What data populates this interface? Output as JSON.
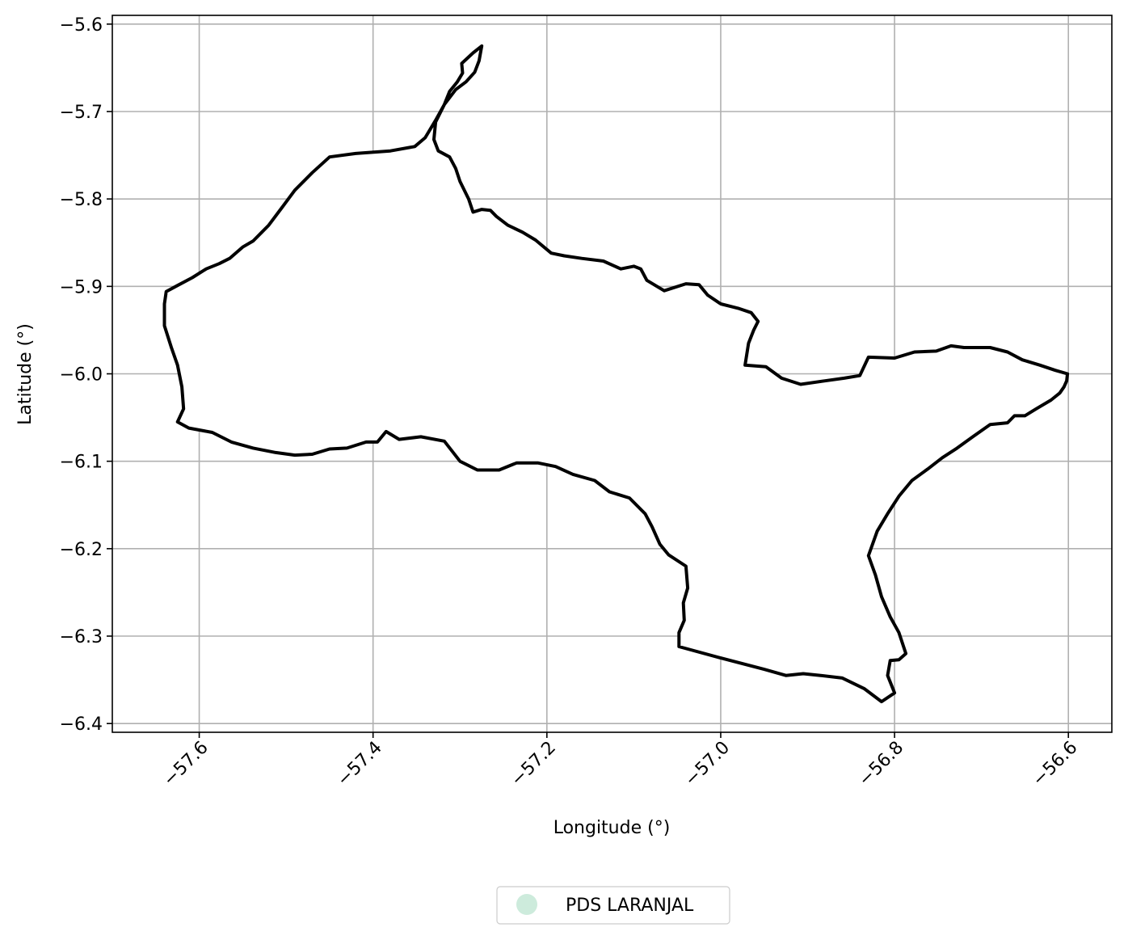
{
  "chart_data": {
    "type": "map",
    "xlabel": "Longitude (°)",
    "ylabel": "Latitude (°)",
    "xlim": [
      -57.7,
      -56.55
    ],
    "ylim": [
      -6.41,
      -5.59
    ],
    "xticks": [
      -57.6,
      -57.4,
      -57.2,
      -57.0,
      -56.8,
      -56.6
    ],
    "xtick_labels": [
      "−57.6",
      "−57.4",
      "−57.2",
      "−57.0",
      "−56.8",
      "−56.6"
    ],
    "yticks": [
      -5.6,
      -5.7,
      -5.8,
      -5.9,
      -6.0,
      -6.1,
      -6.2,
      -6.3,
      -6.4
    ],
    "ytick_labels": [
      "−5.6",
      "−5.7",
      "−5.8",
      "−5.9",
      "−6.0",
      "−6.1",
      "−6.2",
      "−6.3",
      "−6.4"
    ],
    "grid": true,
    "legend": {
      "placement": "bottom-center, below plot",
      "entries": [
        {
          "label": "PDS LARANJAL",
          "color": "#cdebdc",
          "marker": "circle"
        }
      ]
    },
    "series": [
      {
        "name": "PDS LARANJAL",
        "fill_color": "#ffffff",
        "stroke_color": "#000000",
        "boundary": [
          [
            -57.275,
            -5.625
          ],
          [
            -57.285,
            -5.633
          ],
          [
            -57.298,
            -5.645
          ],
          [
            -57.297,
            -5.656
          ],
          [
            -57.303,
            -5.666
          ],
          [
            -57.312,
            -5.677
          ],
          [
            -57.318,
            -5.692
          ],
          [
            -57.328,
            -5.71
          ],
          [
            -57.34,
            -5.73
          ],
          [
            -57.352,
            -5.74
          ],
          [
            -57.38,
            -5.745
          ],
          [
            -57.42,
            -5.748
          ],
          [
            -57.45,
            -5.752
          ],
          [
            -57.47,
            -5.77
          ],
          [
            -57.49,
            -5.79
          ],
          [
            -57.505,
            -5.81
          ],
          [
            -57.52,
            -5.83
          ],
          [
            -57.528,
            -5.838
          ],
          [
            -57.538,
            -5.848
          ],
          [
            -57.55,
            -5.855
          ],
          [
            -57.565,
            -5.868
          ],
          [
            -57.577,
            -5.874
          ],
          [
            -57.592,
            -5.88
          ],
          [
            -57.608,
            -5.89
          ],
          [
            -57.625,
            -5.899
          ],
          [
            -57.638,
            -5.906
          ],
          [
            -57.64,
            -5.92
          ],
          [
            -57.64,
            -5.945
          ],
          [
            -57.632,
            -5.97
          ],
          [
            -57.625,
            -5.99
          ],
          [
            -57.62,
            -6.015
          ],
          [
            -57.618,
            -6.04
          ],
          [
            -57.625,
            -6.055
          ],
          [
            -57.612,
            -6.062
          ],
          [
            -57.585,
            -6.067
          ],
          [
            -57.563,
            -6.078
          ],
          [
            -57.538,
            -6.085
          ],
          [
            -57.512,
            -6.09
          ],
          [
            -57.49,
            -6.093
          ],
          [
            -57.47,
            -6.092
          ],
          [
            -57.45,
            -6.086
          ],
          [
            -57.43,
            -6.085
          ],
          [
            -57.408,
            -6.078
          ],
          [
            -57.395,
            -6.078
          ],
          [
            -57.385,
            -6.066
          ],
          [
            -57.37,
            -6.075
          ],
          [
            -57.345,
            -6.072
          ],
          [
            -57.318,
            -6.077
          ],
          [
            -57.3,
            -6.1
          ],
          [
            -57.28,
            -6.11
          ],
          [
            -57.255,
            -6.11
          ],
          [
            -57.235,
            -6.102
          ],
          [
            -57.21,
            -6.102
          ],
          [
            -57.19,
            -6.106
          ],
          [
            -57.17,
            -6.115
          ],
          [
            -57.145,
            -6.122
          ],
          [
            -57.128,
            -6.135
          ],
          [
            -57.105,
            -6.142
          ],
          [
            -57.087,
            -6.16
          ],
          [
            -57.079,
            -6.175
          ],
          [
            -57.07,
            -6.195
          ],
          [
            -57.06,
            -6.207
          ],
          [
            -57.04,
            -6.22
          ],
          [
            -57.038,
            -6.245
          ],
          [
            -57.043,
            -6.262
          ],
          [
            -57.042,
            -6.282
          ],
          [
            -57.048,
            -6.296
          ],
          [
            -57.048,
            -6.312
          ],
          [
            -57.0,
            -6.325
          ],
          [
            -56.95,
            -6.338
          ],
          [
            -56.925,
            -6.345
          ],
          [
            -56.905,
            -6.343
          ],
          [
            -56.885,
            -6.345
          ],
          [
            -56.86,
            -6.348
          ],
          [
            -56.835,
            -6.36
          ],
          [
            -56.815,
            -6.375
          ],
          [
            -56.8,
            -6.365
          ],
          [
            -56.808,
            -6.345
          ],
          [
            -56.805,
            -6.328
          ],
          [
            -56.795,
            -6.327
          ],
          [
            -56.787,
            -6.32
          ],
          [
            -56.795,
            -6.296
          ],
          [
            -56.805,
            -6.278
          ],
          [
            -56.815,
            -6.255
          ],
          [
            -56.822,
            -6.23
          ],
          [
            -56.83,
            -6.208
          ],
          [
            -56.82,
            -6.18
          ],
          [
            -56.808,
            -6.16
          ],
          [
            -56.795,
            -6.14
          ],
          [
            -56.78,
            -6.122
          ],
          [
            -56.762,
            -6.109
          ],
          [
            -56.745,
            -6.096
          ],
          [
            -56.728,
            -6.085
          ],
          [
            -56.71,
            -6.072
          ],
          [
            -56.69,
            -6.058
          ],
          [
            -56.67,
            -6.056
          ],
          [
            -56.662,
            -6.048
          ],
          [
            -56.65,
            -6.048
          ],
          [
            -56.637,
            -6.04
          ],
          [
            -56.62,
            -6.03
          ],
          [
            -56.61,
            -6.022
          ],
          [
            -56.605,
            -6.015
          ],
          [
            -56.602,
            -6.008
          ],
          [
            -56.601,
            -6.0
          ],
          [
            -56.615,
            -5.996
          ],
          [
            -56.633,
            -5.99
          ],
          [
            -56.653,
            -5.984
          ],
          [
            -56.67,
            -5.975
          ],
          [
            -56.69,
            -5.97
          ],
          [
            -56.72,
            -5.97
          ],
          [
            -56.735,
            -5.968
          ],
          [
            -56.752,
            -5.974
          ],
          [
            -56.777,
            -5.975
          ],
          [
            -56.8,
            -5.982
          ],
          [
            -56.83,
            -5.981
          ],
          [
            -56.84,
            -6.002
          ],
          [
            -56.858,
            -6.005
          ],
          [
            -56.88,
            -6.008
          ],
          [
            -56.908,
            -6.012
          ],
          [
            -56.93,
            -6.005
          ],
          [
            -56.948,
            -5.992
          ],
          [
            -56.972,
            -5.99
          ],
          [
            -56.968,
            -5.965
          ],
          [
            -56.962,
            -5.95
          ],
          [
            -56.957,
            -5.94
          ],
          [
            -56.965,
            -5.93
          ],
          [
            -56.98,
            -5.925
          ],
          [
            -57.0,
            -5.92
          ],
          [
            -57.015,
            -5.91
          ],
          [
            -57.025,
            -5.898
          ],
          [
            -57.04,
            -5.897
          ],
          [
            -57.065,
            -5.905
          ],
          [
            -57.085,
            -5.893
          ],
          [
            -57.092,
            -5.88
          ],
          [
            -57.1,
            -5.877
          ],
          [
            -57.115,
            -5.88
          ],
          [
            -57.135,
            -5.871
          ],
          [
            -57.16,
            -5.868
          ],
          [
            -57.18,
            -5.865
          ],
          [
            -57.195,
            -5.862
          ],
          [
            -57.213,
            -5.847
          ],
          [
            -57.228,
            -5.838
          ],
          [
            -57.245,
            -5.83
          ],
          [
            -57.258,
            -5.82
          ],
          [
            -57.265,
            -5.813
          ],
          [
            -57.275,
            -5.812
          ],
          [
            -57.285,
            -5.815
          ],
          [
            -57.29,
            -5.8
          ],
          [
            -57.3,
            -5.78
          ],
          [
            -57.305,
            -5.765
          ],
          [
            -57.312,
            -5.752
          ],
          [
            -57.325,
            -5.745
          ],
          [
            -57.33,
            -5.732
          ],
          [
            -57.328,
            -5.712
          ],
          [
            -57.318,
            -5.692
          ],
          [
            -57.305,
            -5.675
          ],
          [
            -57.293,
            -5.666
          ],
          [
            -57.283,
            -5.655
          ],
          [
            -57.278,
            -5.642
          ],
          [
            -57.275,
            -5.625
          ]
        ]
      }
    ]
  }
}
